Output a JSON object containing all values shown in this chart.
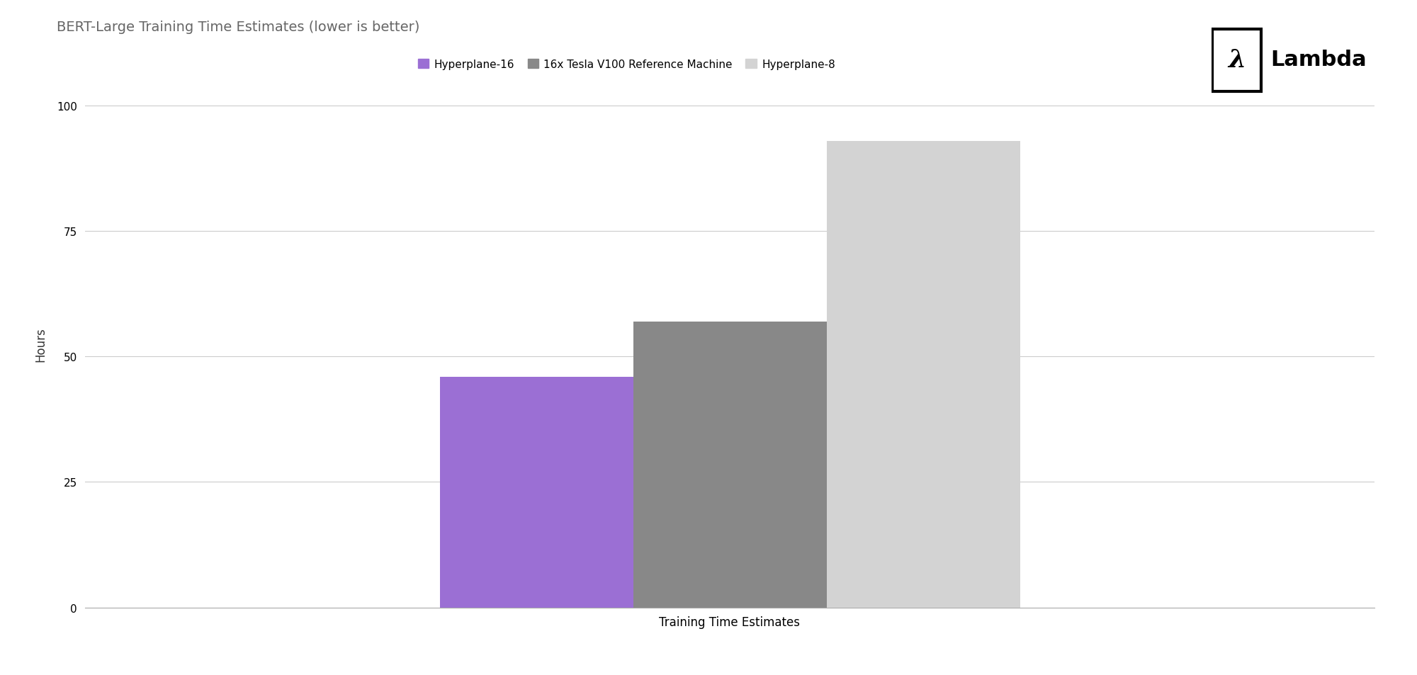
{
  "title": "BERT-Large Training Time Estimates (lower is better)",
  "xlabel": "Training Time Estimates",
  "ylabel": "Hours",
  "categories": [
    "Hyperplane-16",
    "16x Tesla V100 Reference Machine",
    "Hyperplane-8"
  ],
  "values": [
    46,
    57,
    93
  ],
  "bar_colors": [
    "#9b6fd4",
    "#888888",
    "#d3d3d3"
  ],
  "legend_labels": [
    "Hyperplane-16",
    "16x Tesla V100 Reference Machine",
    "Hyperplane-8"
  ],
  "ylim": [
    0,
    105
  ],
  "yticks": [
    0,
    25,
    50,
    75,
    100
  ],
  "background_color": "#ffffff",
  "title_fontsize": 14,
  "axis_label_fontsize": 12,
  "tick_fontsize": 11,
  "legend_fontsize": 11,
  "bar_width": 0.12,
  "grid_color": "#cccccc",
  "grid_linewidth": 0.8,
  "title_color": "#666666"
}
